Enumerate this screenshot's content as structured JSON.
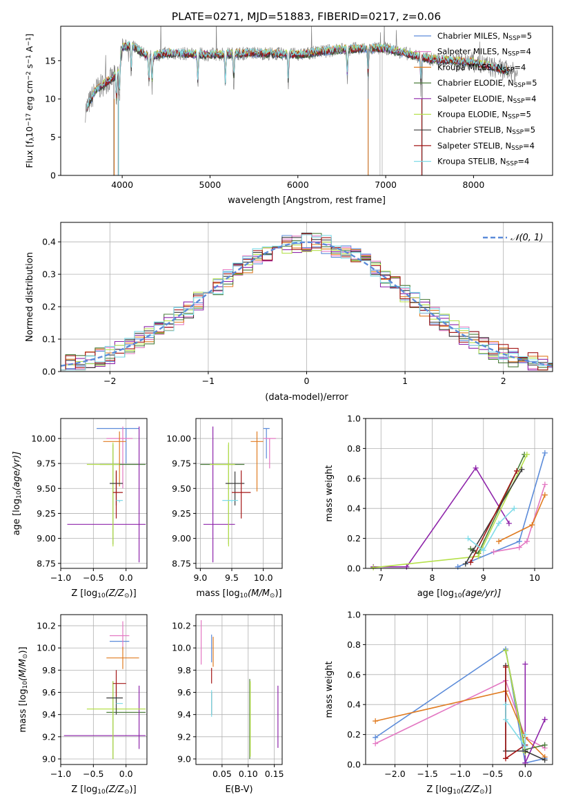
{
  "figure_title": "PLATE=0271, MJD=51883, FIBERID=0217, z=0.06",
  "colors": {
    "chabrier_miles": "#5b8bd9",
    "salpeter_miles": "#e377c2",
    "kroupa_miles": "#e07b20",
    "chabrier_elodie": "#4a7c3a",
    "salpeter_elodie": "#8e24aa",
    "kroupa_elodie": "#b5e04a",
    "chabrier_stelib": "#3a3a3a",
    "salpeter_stelib": "#a31515",
    "kroupa_stelib": "#7fdbe8",
    "data": "#808080",
    "normal_curve": "#5b8bd9"
  },
  "chart_data": [
    {
      "id": "spectrum",
      "type": "line",
      "title": "PLATE=0271, MJD=51883, FIBERID=0217, z=0.06",
      "xlabel": "wavelength [Angstrom, rest frame]",
      "ylabel_main": "Flux [f",
      "ylabel_sub": "λ",
      "ylabel_rest": "10",
      "ylabel_exp": "−17",
      "ylabel_tail": " erg cm",
      "ylabel_exp2": "−2",
      "ylabel_s": " s",
      "ylabel_exp3": "−1",
      "ylabel_A": " A",
      "ylabel_exp4": "−1",
      "ylabel_close": "]",
      "xlim": [
        3300,
        8900
      ],
      "ylim": [
        0,
        19.5
      ],
      "xticks": [
        "4000",
        "5000",
        "6000",
        "7000",
        "8000"
      ],
      "yticks": [
        "0",
        "5",
        "10",
        "15"
      ],
      "legend_position": "right",
      "series": [
        {
          "name": "Chabrier MILES, N",
          "sub": "SSP",
          "suffix": "=5"
        },
        {
          "name": "Salpeter MILES, N",
          "sub": "SSP",
          "suffix": "=4"
        },
        {
          "name": "Kroupa MILES, N",
          "sub": "SSP",
          "suffix": "=4"
        },
        {
          "name": "Chabrier ELODIE, N",
          "sub": "SSP",
          "suffix": "=5"
        },
        {
          "name": "Salpeter ELODIE, N",
          "sub": "SSP",
          "suffix": "=4"
        },
        {
          "name": "Kroupa ELODIE, N",
          "sub": "SSP",
          "suffix": "=5"
        },
        {
          "name": "Chabrier STELIB, N",
          "sub": "SSP",
          "suffix": "=5"
        },
        {
          "name": "Salpeter STELIB, N",
          "sub": "SSP",
          "suffix": "=4"
        },
        {
          "name": "Kroupa STELIB, N",
          "sub": "SSP",
          "suffix": "=4"
        }
      ],
      "continuum_profile": {
        "x": [
          3580,
          3700,
          3800,
          3900,
          3960,
          4000,
          4100,
          4300,
          4500,
          5000,
          5500,
          6000,
          6500,
          7000,
          7500,
          8000,
          8500
        ],
        "y": [
          8.5,
          11.2,
          12.0,
          12.8,
          13.5,
          16.8,
          17.0,
          15.5,
          16.0,
          15.8,
          16.0,
          15.8,
          16.5,
          16.6,
          15.2,
          14.8,
          13.3
        ]
      },
      "absorption_features": [
        3934,
        3969,
        4102,
        4304,
        4340,
        4861,
        5175,
        5270,
        5890,
        6563,
        6800,
        7400
      ]
    },
    {
      "id": "residuals",
      "type": "bar",
      "xlabel": "(data-model)/error",
      "ylabel": "Normed distribution",
      "xlim": [
        -2.5,
        2.5
      ],
      "ylim": [
        0,
        0.46
      ],
      "xticks": [
        "−2",
        "−1",
        "0",
        "1",
        "2"
      ],
      "yticks": [
        "0.0",
        "0.1",
        "0.2",
        "0.3",
        "0.4"
      ],
      "grid": true,
      "legend_position": "top-right",
      "legend_label": "𝒩(0, 1)",
      "bin_width": 0.1
    },
    {
      "id": "age_vs_Z",
      "type": "scatter",
      "xlabel": "Z [log",
      "xlabel_sub": "10",
      "xlabel_tail": "(Z/Z",
      "xlabel_sun": "⊙",
      "xlabel_close": ")]",
      "ylabel": "age  [log",
      "ylabel_sub": "10",
      "ylabel_tail": "(age/yr)]",
      "xlim": [
        -1.0,
        0.32
      ],
      "ylim": [
        8.7,
        10.2
      ],
      "xticks": [
        "−1.0",
        "−0.5",
        "0.0"
      ],
      "yticks": [
        "8.75",
        "9.00",
        "9.25",
        "9.50",
        "9.75",
        "10.00"
      ],
      "grid": true,
      "points": [
        {
          "series": "chabrier_miles",
          "x": 0.0,
          "xerr": [
            0.45,
            0.2
          ],
          "y": 10.1,
          "yerr": [
            0.35,
            0.0
          ]
        },
        {
          "series": "salpeter_miles",
          "x": -0.05,
          "xerr": [
            0.25,
            0.15
          ],
          "y": 10.0,
          "yerr": [
            0.5,
            0.12
          ]
        },
        {
          "series": "kroupa_miles",
          "x": -0.1,
          "xerr": [
            0.25,
            0.1
          ],
          "y": 9.97,
          "yerr": [
            0.45,
            0.1
          ]
        },
        {
          "series": "chabrier_elodie",
          "x": -0.2,
          "xerr": [
            0.2,
            0.5
          ],
          "y": 9.74,
          "yerr": [
            0.8,
            0.2
          ]
        },
        {
          "series": "salpeter_elodie",
          "x": 0.2,
          "xerr": [
            1.1,
            0.1
          ],
          "y": 9.14,
          "yerr": [
            0.38,
            0.98
          ]
        },
        {
          "series": "kroupa_elodie",
          "x": -0.2,
          "xerr": [
            0.4,
            0.1
          ],
          "y": 9.74,
          "yerr": [
            0.82,
            0.22
          ]
        },
        {
          "series": "chabrier_stelib",
          "x": -0.15,
          "xerr": [
            0.1,
            0.1
          ],
          "y": 9.55,
          "yerr": [
            0.22,
            0.12
          ]
        },
        {
          "series": "salpeter_stelib",
          "x": -0.15,
          "xerr": [
            0.05,
            0.1
          ],
          "y": 9.46,
          "yerr": [
            0.26,
            0.22
          ]
        },
        {
          "series": "kroupa_stelib",
          "x": -0.1,
          "xerr": [
            0.05,
            0.05
          ],
          "y": 9.38,
          "yerr": [
            0.02,
            0.0
          ]
        }
      ]
    },
    {
      "id": "age_vs_mass",
      "type": "scatter",
      "xlabel": "mass [log",
      "xlabel_sub": "10",
      "xlabel_tail": "(M/M",
      "xlabel_sun": "⊙",
      "xlabel_close": ")]",
      "xlim": [
        8.93,
        10.3
      ],
      "ylim": [
        8.7,
        10.2
      ],
      "xticks": [
        "9.0",
        "9.5",
        "10.0"
      ],
      "yticks": [
        "8.75",
        "9.00",
        "9.25",
        "9.50",
        "9.75",
        "10.00"
      ],
      "grid": true,
      "points": [
        {
          "series": "chabrier_miles",
          "x": 10.05,
          "xerr": [
            0.05,
            0.05
          ],
          "y": 10.1,
          "yerr": [
            0.3,
            0.0
          ]
        },
        {
          "series": "salpeter_miles",
          "x": 10.1,
          "xerr": [
            0.1,
            0.1
          ],
          "y": 10.0,
          "yerr": [
            0.3,
            0.0
          ]
        },
        {
          "series": "kroupa_miles",
          "x": 9.9,
          "xerr": [
            0.1,
            0.1
          ],
          "y": 9.97,
          "yerr": [
            0.5,
            0.1
          ]
        },
        {
          "series": "chabrier_elodie",
          "x": 9.45,
          "xerr": [
            0.45,
            0.25
          ],
          "y": 9.74,
          "yerr": [
            0.8,
            0.2
          ]
        },
        {
          "series": "salpeter_elodie",
          "x": 9.2,
          "xerr": [
            0.15,
            0.35
          ],
          "y": 9.14,
          "yerr": [
            0.38,
            0.98
          ]
        },
        {
          "series": "kroupa_elodie",
          "x": 9.45,
          "xerr": [
            0.3,
            0.1
          ],
          "y": 9.74,
          "yerr": [
            0.82,
            0.22
          ]
        },
        {
          "series": "chabrier_stelib",
          "x": 9.55,
          "xerr": [
            0.15,
            0.15
          ],
          "y": 9.55,
          "yerr": [
            0.22,
            0.12
          ]
        },
        {
          "series": "salpeter_stelib",
          "x": 9.65,
          "xerr": [
            0.15,
            0.15
          ],
          "y": 9.46,
          "yerr": [
            0.26,
            0.22
          ]
        },
        {
          "series": "kroupa_stelib",
          "x": 9.5,
          "xerr": [
            0.15,
            0.1
          ],
          "y": 9.38,
          "yerr": [
            0.02,
            0.0
          ]
        }
      ]
    },
    {
      "id": "weight_vs_age",
      "type": "line",
      "xlabel": "age  [log",
      "xlabel_sub": "10",
      "xlabel_tail": "(age/yr)]",
      "ylabel": "mass weight",
      "xlim": [
        6.7,
        10.35
      ],
      "ylim": [
        0,
        1.0
      ],
      "xticks": [
        "7",
        "8",
        "9",
        "10"
      ],
      "yticks": [
        "0.0",
        "0.2",
        "0.4",
        "0.6",
        "0.8",
        "1.0"
      ],
      "grid": true,
      "series": [
        {
          "key": "chabrier_miles",
          "x": [
            8.5,
            9.7,
            10.2
          ],
          "y": [
            0.01,
            0.18,
            0.77
          ]
        },
        {
          "key": "salpeter_miles",
          "x": [
            9.2,
            9.7,
            9.85,
            10.2
          ],
          "y": [
            0.11,
            0.14,
            0.18,
            0.56
          ]
        },
        {
          "key": "kroupa_miles",
          "x": [
            9.3,
            9.95,
            10.2
          ],
          "y": [
            0.18,
            0.29,
            0.49
          ]
        },
        {
          "key": "chabrier_elodie",
          "x": [
            8.75,
            8.9,
            9.8
          ],
          "y": [
            0.13,
            0.1,
            0.76
          ]
        },
        {
          "key": "salpeter_elodie",
          "x": [
            6.85,
            7.5,
            8.85,
            9.5
          ],
          "y": [
            0.01,
            0.01,
            0.67,
            0.3
          ]
        },
        {
          "key": "kroupa_elodie",
          "x": [
            6.85,
            8.9,
            9.85
          ],
          "y": [
            0.005,
            0.08,
            0.76
          ]
        },
        {
          "key": "chabrier_stelib",
          "x": [
            8.65,
            8.8,
            9.75
          ],
          "y": [
            0.03,
            0.12,
            0.66
          ]
        },
        {
          "key": "salpeter_stelib",
          "x": [
            8.75,
            9.65
          ],
          "y": [
            0.04,
            0.65
          ]
        },
        {
          "key": "kroupa_stelib",
          "x": [
            8.7,
            9.0,
            9.3,
            9.6
          ],
          "y": [
            0.2,
            0.12,
            0.3,
            0.4
          ]
        }
      ]
    },
    {
      "id": "mass_vs_Z",
      "type": "scatter",
      "xlabel": "Z [log",
      "xlabel_sub": "10",
      "xlabel_tail": "(Z/Z",
      "xlabel_sun": "⊙",
      "xlabel_close": ")]",
      "ylabel": "mass [log",
      "ylabel_sub": "10",
      "ylabel_tail": "(M/M",
      "ylabel_sun": "⊙",
      "ylabel_close": ")]",
      "xlim": [
        -1.0,
        0.32
      ],
      "ylim": [
        8.95,
        10.3
      ],
      "xticks": [
        "−1.0",
        "−0.5",
        "0.0"
      ],
      "yticks": [
        "9.0",
        "9.2",
        "9.4",
        "9.6",
        "9.8",
        "10.0",
        "10.2"
      ],
      "grid": true,
      "points": [
        {
          "series": "chabrier_miles",
          "x": 0.0,
          "xerr": [
            0.25,
            0.05
          ],
          "y": 10.06,
          "yerr": [
            0.0,
            0.0
          ]
        },
        {
          "series": "salpeter_miles",
          "x": -0.05,
          "xerr": [
            0.2,
            0.1
          ],
          "y": 10.11,
          "yerr": [
            0.13,
            0.13
          ]
        },
        {
          "series": "kroupa_miles",
          "x": -0.05,
          "xerr": [
            0.25,
            0.25
          ],
          "y": 9.91,
          "yerr": [
            0.1,
            0.1
          ]
        },
        {
          "series": "chabrier_elodie",
          "x": -0.2,
          "xerr": [
            0.1,
            0.5
          ],
          "y": 9.42,
          "yerr": [
            0.42,
            0.28
          ]
        },
        {
          "series": "salpeter_elodie",
          "x": 0.2,
          "xerr": [
            1.15,
            0.1
          ],
          "y": 9.21,
          "yerr": [
            0.12,
            0.45
          ]
        },
        {
          "series": "kroupa_elodie",
          "x": -0.2,
          "xerr": [
            0.4,
            0.5
          ],
          "y": 9.45,
          "yerr": [
            0.45,
            0.25
          ]
        },
        {
          "series": "chabrier_stelib",
          "x": -0.15,
          "xerr": [
            0.15,
            0.1
          ],
          "y": 9.55,
          "yerr": [
            0.15,
            0.12
          ]
        },
        {
          "series": "salpeter_stelib",
          "x": -0.15,
          "xerr": [
            0.05,
            0.15
          ],
          "y": 9.68,
          "yerr": [
            0.12,
            0.12
          ]
        },
        {
          "series": "kroupa_stelib",
          "x": -0.1,
          "xerr": [
            0.05,
            0.05
          ],
          "y": 9.5,
          "yerr": [
            0.0,
            0.0
          ]
        }
      ]
    },
    {
      "id": "mass_vs_ebv",
      "type": "scatter",
      "xlabel": "E(B-V)",
      "xlim": [
        0.0,
        0.165
      ],
      "ylim": [
        8.95,
        10.3
      ],
      "xticks": [
        "0.05",
        "0.10",
        "0.15"
      ],
      "yticks": [
        "9.0",
        "9.2",
        "9.4",
        "9.6",
        "9.8",
        "10.0",
        "10.2"
      ],
      "grid": true,
      "points": [
        {
          "series": "chabrier_miles",
          "x": 0.03,
          "xerr": [
            0,
            0
          ],
          "y": 9.97,
          "yerr": [
            0.1,
            0.15
          ]
        },
        {
          "series": "salpeter_miles",
          "x": 0.01,
          "xerr": [
            0,
            0
          ],
          "y": 10.05,
          "yerr": [
            0.2,
            0.2
          ]
        },
        {
          "series": "kroupa_miles",
          "x": 0.033,
          "xerr": [
            0,
            0
          ],
          "y": 9.95,
          "yerr": [
            0.12,
            0.15
          ]
        },
        {
          "series": "chabrier_elodie",
          "x": 0.103,
          "xerr": [
            0,
            0
          ],
          "y": 9.35,
          "yerr": [
            0.35,
            0.37
          ]
        },
        {
          "series": "salpeter_elodie",
          "x": 0.157,
          "xerr": [
            0,
            0
          ],
          "y": 9.38,
          "yerr": [
            0.28,
            0.28
          ]
        },
        {
          "series": "kroupa_elodie",
          "x": 0.104,
          "xerr": [
            0,
            0
          ],
          "y": 9.35,
          "yerr": [
            0.33,
            0.35
          ]
        },
        {
          "series": "chabrier_stelib",
          "x": 0.03,
          "xerr": [
            0,
            0
          ],
          "y": 9.5,
          "yerr": [
            0.1,
            0.1
          ]
        },
        {
          "series": "salpeter_stelib",
          "x": 0.03,
          "xerr": [
            0,
            0
          ],
          "y": 9.75,
          "yerr": [
            0.07,
            0.07
          ]
        },
        {
          "series": "kroupa_stelib",
          "x": 0.03,
          "xerr": [
            0,
            0
          ],
          "y": 9.5,
          "yerr": [
            0.12,
            0.12
          ]
        }
      ]
    },
    {
      "id": "weight_vs_Z",
      "type": "line",
      "xlabel": "Z [log",
      "xlabel_sub": "10",
      "xlabel_tail": "(Z/Z",
      "xlabel_sun": "⊙",
      "xlabel_close": ")]",
      "ylabel": "mass weight",
      "xlim": [
        -2.45,
        0.42
      ],
      "ylim": [
        0,
        1.0
      ],
      "xticks": [
        "−2.0",
        "−1.5",
        "−1.0",
        "−0.5",
        "0.0"
      ],
      "yticks": [
        "0.0",
        "0.2",
        "0.4",
        "0.6",
        "0.8",
        "1.0"
      ],
      "grid": true,
      "series": [
        {
          "key": "chabrier_miles",
          "x": [
            -2.3,
            -0.3,
            0.0,
            0.3
          ],
          "y": [
            0.18,
            0.77,
            0.01,
            0.04
          ]
        },
        {
          "key": "salpeter_miles",
          "x": [
            -2.3,
            -0.3,
            0.0,
            0.3
          ],
          "y": [
            0.14,
            0.56,
            0.18,
            0.11
          ]
        },
        {
          "key": "kroupa_miles",
          "x": [
            -2.3,
            -0.3,
            0.0,
            0.3
          ],
          "y": [
            0.29,
            0.49,
            0.18,
            0.05
          ]
        },
        {
          "key": "chabrier_elodie",
          "x": [
            -0.3,
            0.0,
            0.3
          ],
          "y": [
            0.76,
            0.1,
            0.13
          ]
        },
        {
          "key": "salpeter_elodie",
          "x": [
            0.0,
            0.0,
            0.3,
            0.3
          ],
          "y": [
            0.67,
            0.01,
            0.3,
            0.3
          ]
        },
        {
          "key": "kroupa_elodie",
          "x": [
            -0.3,
            0.0
          ],
          "y": [
            0.76,
            0.08
          ]
        },
        {
          "key": "chabrier_stelib",
          "x": [
            -0.3,
            -0.3,
            0.0,
            0.3
          ],
          "y": [
            0.66,
            0.09,
            0.09,
            0.03
          ]
        },
        {
          "key": "salpeter_stelib",
          "x": [
            -0.3,
            -0.3,
            0.0
          ],
          "y": [
            0.65,
            0.04,
            0.13
          ]
        },
        {
          "key": "kroupa_stelib",
          "x": [
            -0.3,
            -0.3,
            0.0,
            0.0
          ],
          "y": [
            0.4,
            0.3,
            0.12,
            0.2
          ]
        }
      ]
    }
  ]
}
